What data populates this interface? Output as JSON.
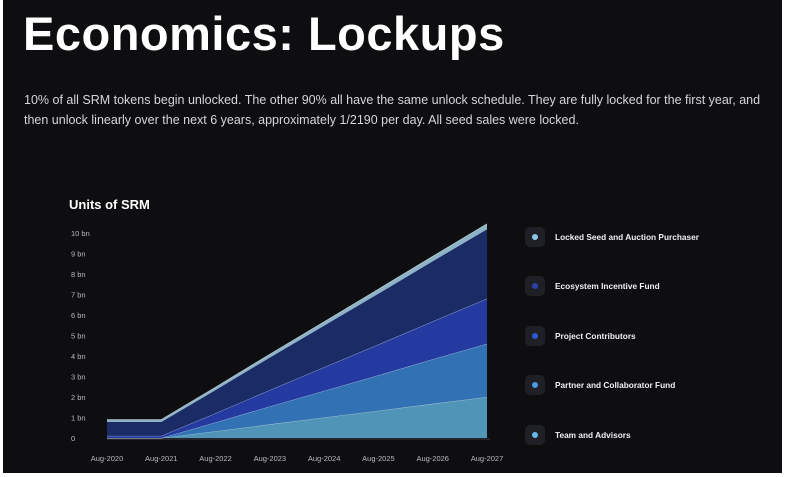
{
  "page": {
    "title": "Economics: Lockups",
    "description": "10% of all SRM tokens begin unlocked. The other 90% all have the same unlock schedule. They are fully locked for the first year, and then unlock linearly over the next 6 years, approximately 1/2190 per day. All seed sales were locked."
  },
  "chart_data": {
    "type": "area",
    "stacked": true,
    "title": "Units of SRM",
    "xlabel": "",
    "ylabel": "",
    "x": [
      "Aug-2020",
      "Aug-2021",
      "Aug-2022",
      "Aug-2023",
      "Aug-2024",
      "Aug-2025",
      "Aug-2026",
      "Aug-2027"
    ],
    "y_ticks": [
      "0",
      "1 bn",
      "2 bn",
      "3 bn",
      "4 bn",
      "5 bn",
      "6 bn",
      "7 bn",
      "8 bn",
      "9 bn",
      "10 bn"
    ],
    "ylim": [
      0,
      10
    ],
    "unit": "bn",
    "legend_position": "right",
    "series": [
      {
        "name": "Team and Advisors",
        "color": "#5095b8",
        "values": [
          0.0,
          0.0,
          0.33,
          0.67,
          1.0,
          1.33,
          1.67,
          2.0
        ]
      },
      {
        "name": "Partner and Collaborator Fund",
        "color": "#3272b4",
        "values": [
          0.0,
          0.0,
          0.43,
          0.87,
          1.3,
          1.73,
          2.17,
          2.6
        ]
      },
      {
        "name": "Project Contributors",
        "color": "#243aa0",
        "values": [
          0.1,
          0.1,
          0.45,
          0.8,
          1.15,
          1.5,
          1.85,
          2.2
        ]
      },
      {
        "name": "Ecosystem Incentive Fund",
        "color": "#1b2b66",
        "values": [
          0.7,
          0.7,
          1.15,
          1.6,
          2.05,
          2.5,
          2.95,
          3.4
        ]
      },
      {
        "name": "Locked Seed and Auction Purchaser",
        "color": "#8cb3c6",
        "values": [
          0.1,
          0.1,
          0.12,
          0.15,
          0.17,
          0.2,
          0.22,
          0.25
        ]
      }
    ],
    "legend": [
      {
        "label": "Locked Seed and Auction Purchaser",
        "color": "#8ec6ea"
      },
      {
        "label": "Ecosystem Incentive Fund",
        "color": "#2b3fb0"
      },
      {
        "label": "Project Contributors",
        "color": "#2f57d8"
      },
      {
        "label": "Partner and Collaborator Fund",
        "color": "#4b9ae6"
      },
      {
        "label": "Team and Advisors",
        "color": "#66b6ea"
      }
    ]
  }
}
